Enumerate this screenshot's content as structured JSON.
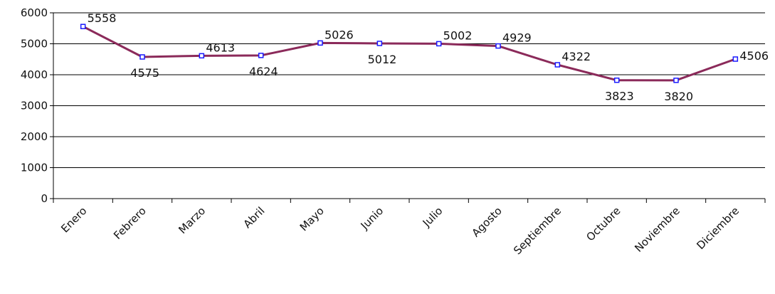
{
  "chart_data": {
    "type": "line",
    "categories": [
      "Enero",
      "Febrero",
      "Marzo",
      "Abril",
      "Mayo",
      "Junio",
      "Julio",
      "Agosto",
      "Septiembre",
      "Octubre",
      "Noviembre",
      "Diciembre"
    ],
    "series": [
      {
        "values": [
          5558,
          4575,
          4613,
          4624,
          5026,
          5012,
          5002,
          4929,
          4322,
          3823,
          3820,
          4506
        ]
      }
    ],
    "title": "",
    "xlabel": "",
    "ylabel": "",
    "ylim": [
      0,
      6000
    ],
    "yticks": [
      "0",
      "1000",
      "2000",
      "3000",
      "4000",
      "5000",
      "6000"
    ],
    "data_labels": [
      "5558",
      "4575",
      "4613",
      "4624",
      "5026",
      "5012",
      "5002",
      "4929",
      "4322",
      "3823",
      "3820",
      "4506"
    ],
    "grid": "horizontal",
    "legend": "none",
    "colors": {
      "line": "#8b2a5a",
      "marker": "#1a1aff",
      "grid": "#000000",
      "axis": "#000000"
    }
  }
}
